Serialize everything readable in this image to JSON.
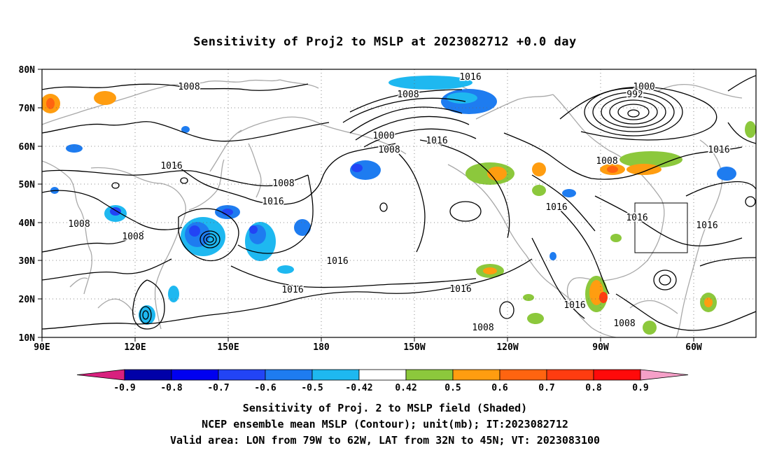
{
  "title": "Sensitivity of Proj2 to MSLP at 2023082712 +0.0 day",
  "lat_labels": [
    "80N",
    "70N",
    "60N",
    "50N",
    "40N",
    "30N",
    "20N",
    "10N"
  ],
  "lon_labels": [
    "90E",
    "120E",
    "150E",
    "180",
    "150W",
    "120W",
    "90W",
    "60W"
  ],
  "contour_labels": [
    {
      "text": "1008"
    },
    {
      "text": "1016"
    },
    {
      "text": "1008"
    },
    {
      "text": "1000"
    },
    {
      "text": "992"
    },
    {
      "text": "1000"
    },
    {
      "text": "1008"
    },
    {
      "text": "1016"
    },
    {
      "text": "1016"
    },
    {
      "text": "1008"
    },
    {
      "text": "1016"
    },
    {
      "text": "1016"
    },
    {
      "text": "1008"
    },
    {
      "text": "1008"
    },
    {
      "text": "1008"
    },
    {
      "text": "1016"
    },
    {
      "text": "1016"
    },
    {
      "text": "1016"
    },
    {
      "text": "1016"
    },
    {
      "text": "1016"
    },
    {
      "text": "1016"
    },
    {
      "text": "1016"
    },
    {
      "text": "1008"
    },
    {
      "text": "1008"
    }
  ],
  "colorbar": {
    "ticks": [
      "-0.9",
      "-0.8",
      "-0.7",
      "-0.6",
      "-0.5",
      "-0.42",
      "0.42",
      "0.5",
      "0.6",
      "0.7",
      "0.8",
      "0.9"
    ],
    "colors": [
      "#d8207e",
      "#0000a8",
      "#0000f0",
      "#2244f5",
      "#1e7cf0",
      "#1eb8f0",
      "#ffffff",
      "#8cc83c",
      "#ff9d10",
      "#ff6410",
      "#ff3c10",
      "#ff0a0a",
      "#f5a0c8"
    ]
  },
  "footer": {
    "line1": "Sensitivity of Proj. 2 to MSLP field (Shaded)",
    "line2": "NCEP ensemble mean MSLP (Contour); unit(mb); IT:2023082712",
    "line3": "Valid area: LON from 79W to 62W, LAT from 32N to 45N; VT: 2023083100"
  }
}
